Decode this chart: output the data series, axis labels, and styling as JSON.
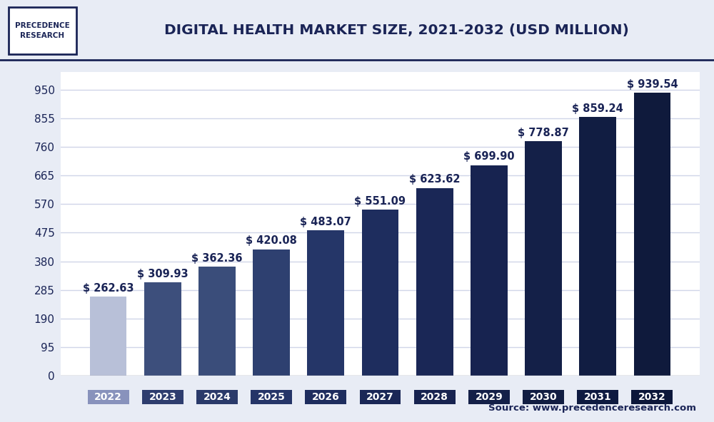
{
  "title": "DIGITAL HEALTH MARKET SIZE, 2021-2032 (USD MILLION)",
  "years": [
    2022,
    2023,
    2024,
    2025,
    2026,
    2027,
    2028,
    2029,
    2030,
    2031,
    2032
  ],
  "values": [
    262.63,
    309.93,
    362.36,
    420.08,
    483.07,
    551.09,
    623.62,
    699.9,
    778.87,
    859.24,
    939.54
  ],
  "bar_colors": [
    "#b8c0d8",
    "#3d4f7c",
    "#3a4d7a",
    "#2e4070",
    "#253668",
    "#1e2d5e",
    "#1a2756",
    "#172350",
    "#142048",
    "#111d42",
    "#0f1a3c"
  ],
  "xtick_box_colors": [
    "#8892bc",
    "#2e3d6e",
    "#2a3a6a",
    "#253568",
    "#1e2d5e",
    "#1a2756",
    "#172350",
    "#142048",
    "#111d42",
    "#0e1a40",
    "#0c173a"
  ],
  "yticks": [
    0,
    95,
    190,
    285,
    380,
    475,
    570,
    665,
    760,
    855,
    950
  ],
  "ylim": [
    0,
    1010
  ],
  "background_color": "#e8ecf5",
  "plot_bg_color": "#ffffff",
  "grid_color": "#d0d5e8",
  "label_color": "#1a2456",
  "source_text": "Source: www.precedenceresearch.com",
  "logo_text": "PRECEDENCE\nRESEARCH",
  "label_fontsize": 10.5,
  "title_fontsize": 14.5,
  "ytick_fontsize": 11,
  "xtick_fontsize": 10
}
